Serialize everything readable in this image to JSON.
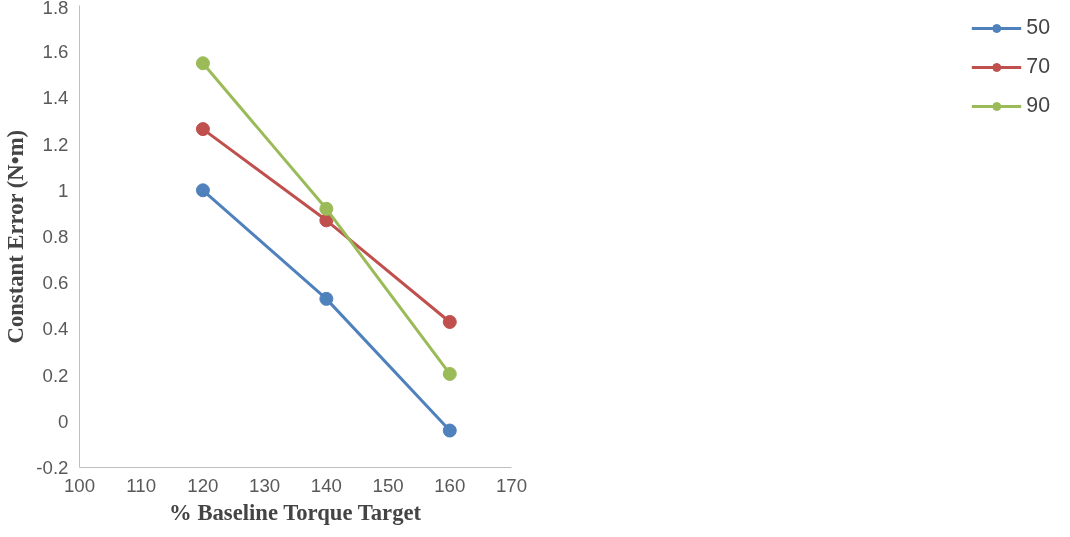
{
  "chart_data": {
    "type": "line",
    "xlabel": "% Baseline Torque Target",
    "ylabel": "Constant Error (N•m)",
    "x": [
      120,
      140,
      160
    ],
    "series": [
      {
        "name": "50",
        "color": "#4f81bd",
        "values": [
          1.0,
          0.53,
          -0.04
        ]
      },
      {
        "name": "70",
        "color": "#c0504d",
        "values": [
          1.265,
          0.87,
          0.43
        ]
      },
      {
        "name": "90",
        "color": "#9bbb59",
        "values": [
          1.55,
          0.92,
          0.205
        ]
      }
    ],
    "xlim": [
      100,
      170
    ],
    "xticks": [
      100,
      110,
      120,
      130,
      140,
      150,
      160,
      170
    ],
    "ylim": [
      -0.2,
      1.8
    ],
    "yticks": [
      -0.2,
      0,
      0.2,
      0.4,
      0.6,
      0.8,
      1,
      1.2,
      1.4,
      1.6,
      1.8
    ],
    "grid": false,
    "legend": "right",
    "marker": "circle",
    "line_style": "solid"
  }
}
